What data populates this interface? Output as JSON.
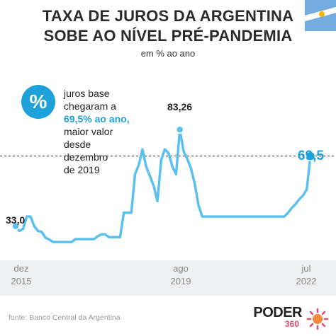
{
  "header": {
    "title_line1": "TAXA DE JUROS DA ARGENTINA",
    "title_line2": "SOBE AO NÍVEL PRÉ-PANDEMIA",
    "subtitle": "em % ao ano"
  },
  "annotation": {
    "icon": "percent-icon",
    "icon_glyph": "%",
    "line1": "juros base",
    "line2": "chegaram a",
    "highlight": "69,5% ao ano,",
    "line4": "maior valor",
    "line5": "desde",
    "line6": "dezembro",
    "line7": "de 2019"
  },
  "colors": {
    "series": "#5bc0ee",
    "accent": "#1ea0d8",
    "title": "#2b2b2b",
    "band": "#eef0f2",
    "reference_line": "#333333"
  },
  "source": "fonte: Banco Central da Argentina",
  "brand": {
    "word": "PODER",
    "sub": "360"
  },
  "chart_data": {
    "type": "line",
    "title": "TAXA DE JUROS DA ARGENTINA SOBE AO NÍVEL PRÉ-PANDEMIA",
    "subtitle": "em % ao ano",
    "xlabel": "",
    "ylabel": "",
    "x_ticks": [
      {
        "month": "dez",
        "year": "2015"
      },
      {
        "month": "ago",
        "year": "2019"
      },
      {
        "month": "jul",
        "year": "2022"
      }
    ],
    "ylim": [
      20,
      90
    ],
    "grid": false,
    "reference_line": 69.5,
    "series": [
      {
        "x": [
          "2015-12",
          "2016-01",
          "2016-02",
          "2016-03",
          "2016-04",
          "2016-05",
          "2016-06",
          "2016-07",
          "2016-08",
          "2016-09",
          "2016-10",
          "2016-11",
          "2016-12",
          "2017-01",
          "2017-02",
          "2017-03",
          "2017-04",
          "2017-05",
          "2017-06",
          "2017-07",
          "2017-08",
          "2017-09",
          "2017-10",
          "2017-11",
          "2017-12",
          "2018-01",
          "2018-02",
          "2018-03",
          "2018-04",
          "2018-05",
          "2018-06",
          "2018-07",
          "2018-08",
          "2018-09",
          "2018-10",
          "2018-11",
          "2018-12",
          "2019-01",
          "2019-02",
          "2019-03",
          "2019-04",
          "2019-05",
          "2019-06",
          "2019-07",
          "2019-08",
          "2019-09",
          "2019-10",
          "2019-11",
          "2019-12",
          "2020-01",
          "2020-02",
          "2020-03",
          "2020-04",
          "2020-06",
          "2020-09",
          "2020-12",
          "2021-03",
          "2021-06",
          "2021-09",
          "2021-12",
          "2022-01",
          "2022-02",
          "2022-03",
          "2022-04",
          "2022-05",
          "2022-06",
          "2022-07"
        ],
        "values": [
          33.0,
          30.5,
          31.5,
          38.0,
          38.0,
          33.0,
          30.5,
          30.0,
          27.0,
          26.0,
          24.8,
          24.75,
          24.75,
          24.75,
          24.75,
          24.75,
          26.25,
          26.25,
          26.25,
          26.25,
          26.25,
          26.25,
          27.75,
          28.75,
          28.75,
          27.25,
          27.25,
          27.25,
          27.25,
          40.0,
          40.0,
          40.0,
          60.0,
          65.0,
          73.0,
          64.0,
          59.0,
          54.0,
          46.0,
          67.5,
          73.0,
          71.0,
          64.0,
          60.0,
          83.26,
          72.0,
          68.0,
          63.0,
          55.0,
          44.0,
          38.0,
          38.0,
          38.0,
          38.0,
          38.0,
          38.0,
          38.0,
          38.0,
          38.0,
          38.0,
          40.0,
          42.5,
          44.5,
          47.0,
          49.0,
          52.0,
          69.5
        ],
        "labels": [
          {
            "index": 0,
            "text": "33,0"
          },
          {
            "index": 44,
            "text": "83,26"
          },
          {
            "index": 66,
            "text": "69,5"
          }
        ]
      }
    ]
  }
}
